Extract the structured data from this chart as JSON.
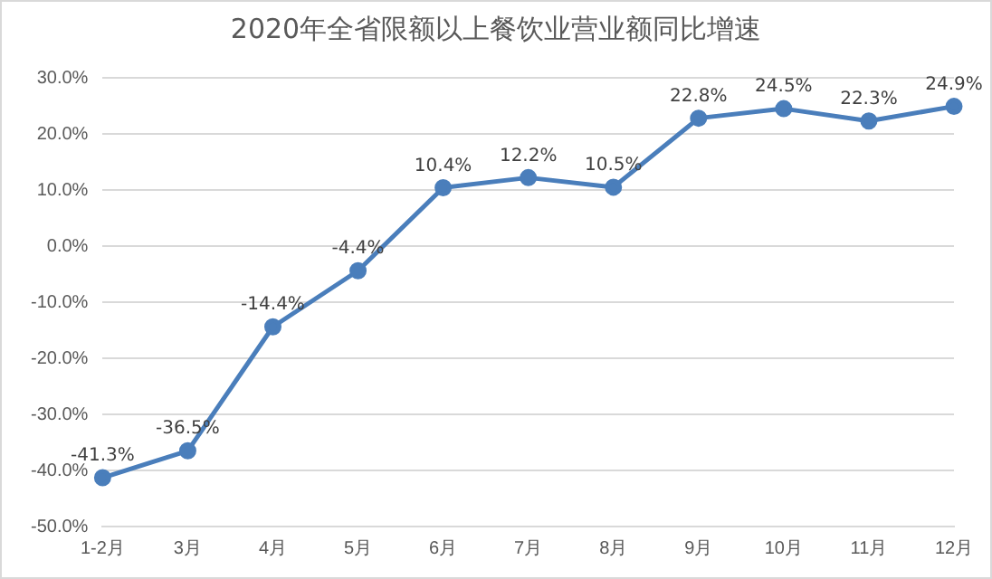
{
  "chart_data": {
    "type": "line",
    "title": "2020年全省限额以上餐饮业营业额同比增速",
    "categories": [
      "1-2月",
      "3月",
      "4月",
      "5月",
      "6月",
      "7月",
      "8月",
      "9月",
      "10月",
      "11月",
      "12月"
    ],
    "values": [
      -41.3,
      -36.5,
      -14.4,
      -4.4,
      10.4,
      12.2,
      10.5,
      22.8,
      24.5,
      22.3,
      24.9
    ],
    "value_labels": [
      "-41.3%",
      "-36.5%",
      "-14.4%",
      "-4.4%",
      "10.4%",
      "12.2%",
      "10.5%",
      "22.8%",
      "24.5%",
      "22.3%",
      "24.9%"
    ],
    "color": "#4a7ebb",
    "ylim": [
      -50,
      30
    ],
    "yticks": [
      {
        "value": -50,
        "label": "-50.0%"
      },
      {
        "value": -40,
        "label": "-40.0%"
      },
      {
        "value": -30,
        "label": "-30.0%"
      },
      {
        "value": -20,
        "label": "-20.0%"
      },
      {
        "value": -10,
        "label": "-10.0%"
      },
      {
        "value": 0,
        "label": "0.0%"
      },
      {
        "value": 10,
        "label": "10.0%"
      },
      {
        "value": 20,
        "label": "20.0%"
      },
      {
        "value": 30,
        "label": "30.0%"
      }
    ],
    "grid": "y",
    "marker": "circle",
    "line_style": "solid",
    "legend": false
  }
}
